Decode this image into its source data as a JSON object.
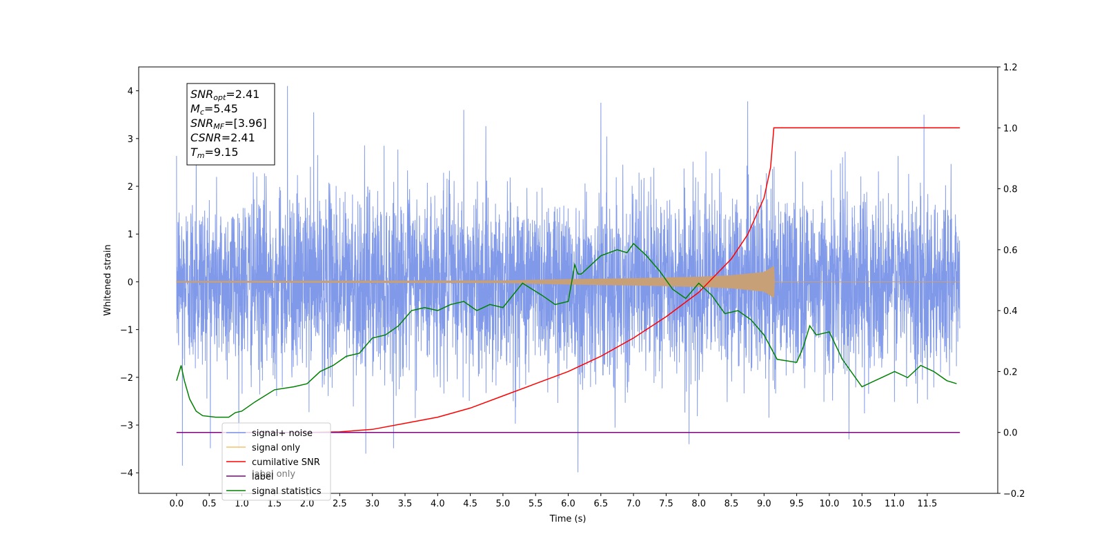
{
  "chart_data": {
    "type": "line",
    "xlabel": "Time (s)",
    "ylabel": "Whitened strain",
    "xlim": [
      -0.58,
      12.58
    ],
    "ylim": [
      -4.43,
      4.5
    ],
    "y2lim": [
      -0.2,
      1.2
    ],
    "x_ticks": [
      "0.0",
      "0.5",
      "1.0",
      "1.5",
      "2.0",
      "2.5",
      "3.0",
      "3.5",
      "4.0",
      "4.5",
      "5.0",
      "5.5",
      "6.0",
      "6.5",
      "7.0",
      "7.5",
      "8.0",
      "8.5",
      "9.0",
      "9.5",
      "10.0",
      "10.5",
      "11.0",
      "11.5"
    ],
    "y_ticks": [
      "4",
      "3",
      "2",
      "1",
      "0",
      "−1",
      "−2",
      "−3",
      "−4"
    ],
    "y2_ticks": [
      "1.2",
      "1.0",
      "0.8",
      "0.6",
      "0.4",
      "0.2",
      "0.0",
      "−0.2"
    ],
    "info_box": [
      {
        "sym": "SNR",
        "sub": "opt",
        "value": "=2.41"
      },
      {
        "sym": "M",
        "sub": "c",
        "value": "=5.45"
      },
      {
        "sym": "SNR",
        "sub": "MF",
        "value": "=[3.96]"
      },
      {
        "sym": "CSNR",
        "sub": "",
        "value": "=2.41"
      },
      {
        "sym": "T",
        "sub": "m",
        "value": "=9.15"
      }
    ],
    "legend": {
      "placement": "lower-left",
      "entries": [
        {
          "label": "signal+ noise",
          "color": "#7a94e8"
        },
        {
          "label": "signal only",
          "color": "#f5c26b"
        },
        {
          "label": "cumilative SNR",
          "color": "#ff0000"
        },
        {
          "label": "label",
          "color": "#800080"
        },
        {
          "label": "signal statistics",
          "color": "#008000"
        }
      ],
      "occluded_text": "label only"
    },
    "series": [
      {
        "name": "signal+ noise",
        "axis": "left",
        "color": "#7a94e8",
        "x_range": [
          0.0,
          12.0
        ],
        "envelope": {
          "typical_high": 1.3,
          "typical_low": -1.3,
          "peak_high": 4.1,
          "peak_low": -3.99
        },
        "spikes": [
          {
            "x": 0.09,
            "y": -3.85
          },
          {
            "x": 0.3,
            "y": 3.3
          },
          {
            "x": 1.7,
            "y": 4.1
          },
          {
            "x": 2.1,
            "y": 3.55
          },
          {
            "x": 2.9,
            "y": -3.6
          },
          {
            "x": 4.4,
            "y": 3.6
          },
          {
            "x": 6.15,
            "y": -3.99
          },
          {
            "x": 6.5,
            "y": 3.75
          },
          {
            "x": 7.85,
            "y": -3.4
          },
          {
            "x": 8.75,
            "y": 3.78
          },
          {
            "x": 10.3,
            "y": -3.3
          },
          {
            "x": 11.45,
            "y": 3.5
          }
        ]
      },
      {
        "name": "signal only",
        "axis": "left",
        "color": "#c8a078",
        "x": [
          0.0,
          5.0,
          6.0,
          7.0,
          8.0,
          8.5,
          9.0,
          9.12,
          9.15,
          9.16,
          12.0
        ],
        "amplitude": [
          0.01,
          0.02,
          0.05,
          0.07,
          0.1,
          0.13,
          0.2,
          0.3,
          0.32,
          0.0,
          0.0
        ]
      },
      {
        "name": "cumilative SNR",
        "axis": "right",
        "color": "#ff0000",
        "x": [
          0.0,
          2.0,
          2.5,
          3.0,
          3.5,
          4.0,
          4.5,
          5.0,
          5.5,
          6.0,
          6.5,
          7.0,
          7.5,
          8.0,
          8.5,
          8.75,
          9.0,
          9.1,
          9.15,
          12.0
        ],
        "y": [
          0.0,
          0.0,
          0.002,
          0.01,
          0.03,
          0.05,
          0.08,
          0.12,
          0.16,
          0.2,
          0.25,
          0.31,
          0.38,
          0.46,
          0.57,
          0.65,
          0.77,
          0.87,
          1.0,
          1.0
        ]
      },
      {
        "name": "label",
        "axis": "right",
        "color": "#800080",
        "x": [
          0.0,
          12.0
        ],
        "y": [
          0.0,
          0.0
        ]
      },
      {
        "name": "signal statistics",
        "axis": "right",
        "color": "#008000",
        "x": [
          0.0,
          0.07,
          0.12,
          0.2,
          0.3,
          0.4,
          0.6,
          0.8,
          0.9,
          1.0,
          1.2,
          1.5,
          1.8,
          2.0,
          2.2,
          2.4,
          2.6,
          2.8,
          3.0,
          3.2,
          3.4,
          3.6,
          3.8,
          4.0,
          4.2,
          4.4,
          4.6,
          4.8,
          5.0,
          5.3,
          5.6,
          5.8,
          6.0,
          6.1,
          6.15,
          6.2,
          6.5,
          6.75,
          6.9,
          7.0,
          7.2,
          7.4,
          7.6,
          7.8,
          8.0,
          8.2,
          8.4,
          8.6,
          8.8,
          9.0,
          9.2,
          9.5,
          9.6,
          9.7,
          9.8,
          10.0,
          10.2,
          10.5,
          10.8,
          11.0,
          11.2,
          11.4,
          11.6,
          11.8,
          11.95
        ],
        "y": [
          0.17,
          0.22,
          0.17,
          0.11,
          0.07,
          0.055,
          0.05,
          0.05,
          0.065,
          0.07,
          0.1,
          0.14,
          0.15,
          0.16,
          0.2,
          0.22,
          0.25,
          0.26,
          0.31,
          0.32,
          0.35,
          0.4,
          0.41,
          0.4,
          0.42,
          0.43,
          0.4,
          0.42,
          0.41,
          0.49,
          0.45,
          0.42,
          0.43,
          0.55,
          0.52,
          0.52,
          0.58,
          0.6,
          0.59,
          0.62,
          0.58,
          0.53,
          0.47,
          0.44,
          0.49,
          0.45,
          0.39,
          0.4,
          0.37,
          0.32,
          0.24,
          0.23,
          0.28,
          0.35,
          0.32,
          0.33,
          0.24,
          0.15,
          0.18,
          0.2,
          0.18,
          0.22,
          0.2,
          0.17,
          0.16
        ]
      }
    ]
  }
}
